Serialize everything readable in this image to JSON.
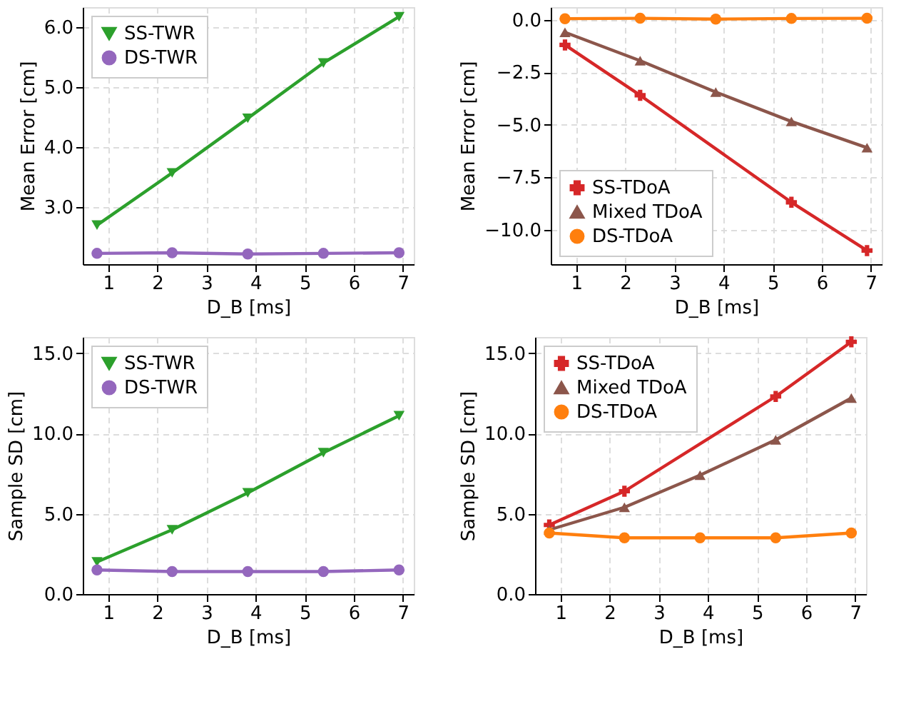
{
  "chart_data": [
    {
      "type": "line",
      "xlabel": "D_B [ms]",
      "ylabel": "Mean Error [cm]",
      "x": [
        0.77,
        2.3,
        3.84,
        5.38,
        6.92
      ],
      "xlim": [
        0.48,
        7.22
      ],
      "xticks": [
        1,
        2,
        3,
        4,
        5,
        6,
        7
      ],
      "ylim": [
        2.05,
        6.33
      ],
      "yticks": [
        {
          "value": 3,
          "label": "3.0"
        },
        {
          "value": 4,
          "label": "4.0"
        },
        {
          "value": 5,
          "label": "5.0"
        },
        {
          "value": 6,
          "label": "6.0"
        }
      ],
      "grid": true,
      "legend": "top left",
      "line_style": "solid",
      "series": [
        {
          "name": "SS-TWR",
          "color": "#2ca02c",
          "marker": "triangle-down",
          "values": [
            2.7,
            3.57,
            4.48,
            5.4,
            6.17
          ]
        },
        {
          "name": "DS-TWR",
          "color": "#9467bd",
          "marker": "circle",
          "values": [
            2.23,
            2.24,
            2.22,
            2.23,
            2.24
          ]
        }
      ]
    },
    {
      "type": "line",
      "xlabel": "D_B [ms]",
      "ylabel": "Mean Error [cm]",
      "x": [
        0.77,
        2.3,
        3.84,
        5.38,
        6.92
      ],
      "xlim": [
        0.48,
        7.22
      ],
      "xticks": [
        1,
        2,
        3,
        4,
        5,
        6,
        7
      ],
      "ylim": [
        -11.65,
        0.6
      ],
      "yticks": [
        {
          "value": 0,
          "label": "0.0"
        },
        {
          "value": -2.5,
          "label": "−2.5"
        },
        {
          "value": -5,
          "label": "−5.0"
        },
        {
          "value": -7.5,
          "label": "−7.5"
        },
        {
          "value": -10,
          "label": "−10.0"
        }
      ],
      "grid": true,
      "legend": "bottom left",
      "line_style": "solid",
      "series": [
        {
          "name": "SS-TDoA",
          "color": "#d62728",
          "marker": "cross",
          "values": [
            -1.2,
            -3.6,
            null,
            -8.7,
            -11.0
          ]
        },
        {
          "name": "Mixed TDoA",
          "color": "#8c564b",
          "marker": "triangle",
          "values": [
            -0.6,
            -1.95,
            -3.45,
            -4.85,
            -6.1
          ]
        },
        {
          "name": "DS-TDoA",
          "color": "#ff7f0e",
          "marker": "circle",
          "values": [
            0.05,
            0.07,
            0.03,
            0.06,
            0.07
          ]
        }
      ]
    },
    {
      "type": "line",
      "xlabel": "D_B [ms]",
      "ylabel": "Sample SD [cm]",
      "x": [
        0.77,
        2.3,
        3.84,
        5.38,
        6.92
      ],
      "xlim": [
        0.48,
        7.22
      ],
      "xticks": [
        1,
        2,
        3,
        4,
        5,
        6,
        7
      ],
      "ylim": [
        0,
        16.0
      ],
      "yticks": [
        {
          "value": 0,
          "label": "0.0"
        },
        {
          "value": 5,
          "label": "5.0"
        },
        {
          "value": 10,
          "label": "10.0"
        },
        {
          "value": 15,
          "label": "15.0"
        }
      ],
      "grid": true,
      "legend": "top left",
      "line_style": "solid",
      "series": [
        {
          "name": "SS-TWR",
          "color": "#2ca02c",
          "marker": "triangle-down",
          "values": [
            2.0,
            4.0,
            6.3,
            8.8,
            11.1
          ]
        },
        {
          "name": "DS-TWR",
          "color": "#9467bd",
          "marker": "circle",
          "values": [
            1.5,
            1.4,
            1.4,
            1.4,
            1.5
          ]
        }
      ]
    },
    {
      "type": "line",
      "xlabel": "D_B [ms]",
      "ylabel": "Sample SD [cm]",
      "x": [
        0.77,
        2.3,
        3.84,
        5.38,
        6.92
      ],
      "xlim": [
        0.48,
        7.22
      ],
      "xticks": [
        1,
        2,
        3,
        4,
        5,
        6,
        7
      ],
      "ylim": [
        0,
        16.0
      ],
      "yticks": [
        {
          "value": 0,
          "label": "0.0"
        },
        {
          "value": 5,
          "label": "5.0"
        },
        {
          "value": 10,
          "label": "10.0"
        },
        {
          "value": 15,
          "label": "15.0"
        }
      ],
      "grid": true,
      "legend": "top left",
      "line_style": "solid",
      "series": [
        {
          "name": "SS-TDoA",
          "color": "#d62728",
          "marker": "cross",
          "values": [
            4.3,
            6.4,
            null,
            12.3,
            15.7
          ]
        },
        {
          "name": "Mixed TDoA",
          "color": "#8c564b",
          "marker": "triangle",
          "values": [
            4.0,
            5.4,
            7.4,
            9.6,
            12.2
          ]
        },
        {
          "name": "DS-TDoA",
          "color": "#ff7f0e",
          "marker": "circle",
          "values": [
            3.8,
            3.5,
            3.5,
            3.5,
            3.8
          ]
        }
      ]
    }
  ]
}
